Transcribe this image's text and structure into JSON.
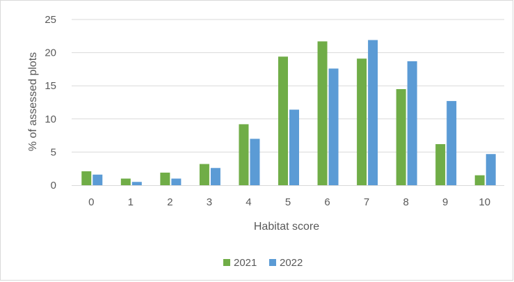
{
  "chart_data": {
    "type": "bar",
    "title": "",
    "xlabel": "Habitat score",
    "ylabel": "% of assessed plots",
    "categories": [
      "0",
      "1",
      "2",
      "3",
      "4",
      "5",
      "6",
      "7",
      "8",
      "9",
      "10"
    ],
    "series": [
      {
        "name": "2021",
        "color": "#70ad47",
        "values": [
          2.1,
          1.0,
          1.9,
          3.2,
          9.2,
          19.4,
          21.7,
          19.1,
          14.5,
          6.2,
          1.5
        ]
      },
      {
        "name": "2022",
        "color": "#5b9bd5",
        "values": [
          1.6,
          0.5,
          1.0,
          2.6,
          7.0,
          11.4,
          17.6,
          21.9,
          18.7,
          12.7,
          4.7
        ]
      }
    ],
    "ylim": [
      0,
      25
    ],
    "yticks": [
      0,
      5,
      10,
      15,
      20,
      25
    ],
    "grid": true,
    "gridline_color": "#d9d9d9",
    "legend_position": "bottom"
  }
}
